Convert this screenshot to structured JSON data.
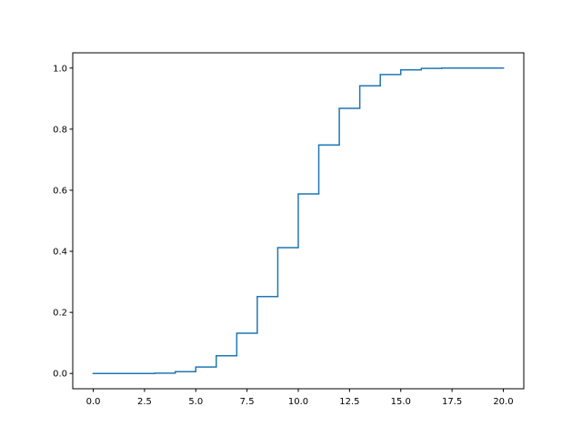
{
  "chart_data": {
    "type": "step",
    "color": "#1f77b4",
    "x": [
      0,
      1,
      2,
      3,
      4,
      5,
      6,
      7,
      8,
      9,
      10,
      11,
      12,
      13,
      14,
      15,
      16,
      17,
      18,
      19,
      20
    ],
    "values": [
      0.0,
      0.0,
      0.0,
      0.001,
      0.006,
      0.021,
      0.058,
      0.132,
      0.252,
      0.412,
      0.588,
      0.748,
      0.868,
      0.942,
      0.979,
      0.994,
      0.999,
      1.0,
      1.0,
      1.0,
      1.0
    ],
    "xlim": [
      -1,
      21
    ],
    "xticks": [
      {
        "value": 0,
        "label": "0.0"
      },
      {
        "value": 2.5,
        "label": "2.5"
      },
      {
        "value": 5,
        "label": "5.0"
      },
      {
        "value": 7.5,
        "label": "7.5"
      },
      {
        "value": 10,
        "label": "10.0"
      },
      {
        "value": 12.5,
        "label": "12.5"
      },
      {
        "value": 15,
        "label": "15.0"
      },
      {
        "value": 17.5,
        "label": "17.5"
      },
      {
        "value": 20,
        "label": "20.0"
      }
    ],
    "ylim": [
      -0.05,
      1.05
    ],
    "yticks": [
      {
        "value": 0,
        "label": "0.0"
      },
      {
        "value": 0.2,
        "label": "0.2"
      },
      {
        "value": 0.4,
        "label": "0.4"
      },
      {
        "value": 0.6,
        "label": "0.6"
      },
      {
        "value": 0.8,
        "label": "0.8"
      },
      {
        "value": 1,
        "label": "1.0"
      }
    ]
  }
}
